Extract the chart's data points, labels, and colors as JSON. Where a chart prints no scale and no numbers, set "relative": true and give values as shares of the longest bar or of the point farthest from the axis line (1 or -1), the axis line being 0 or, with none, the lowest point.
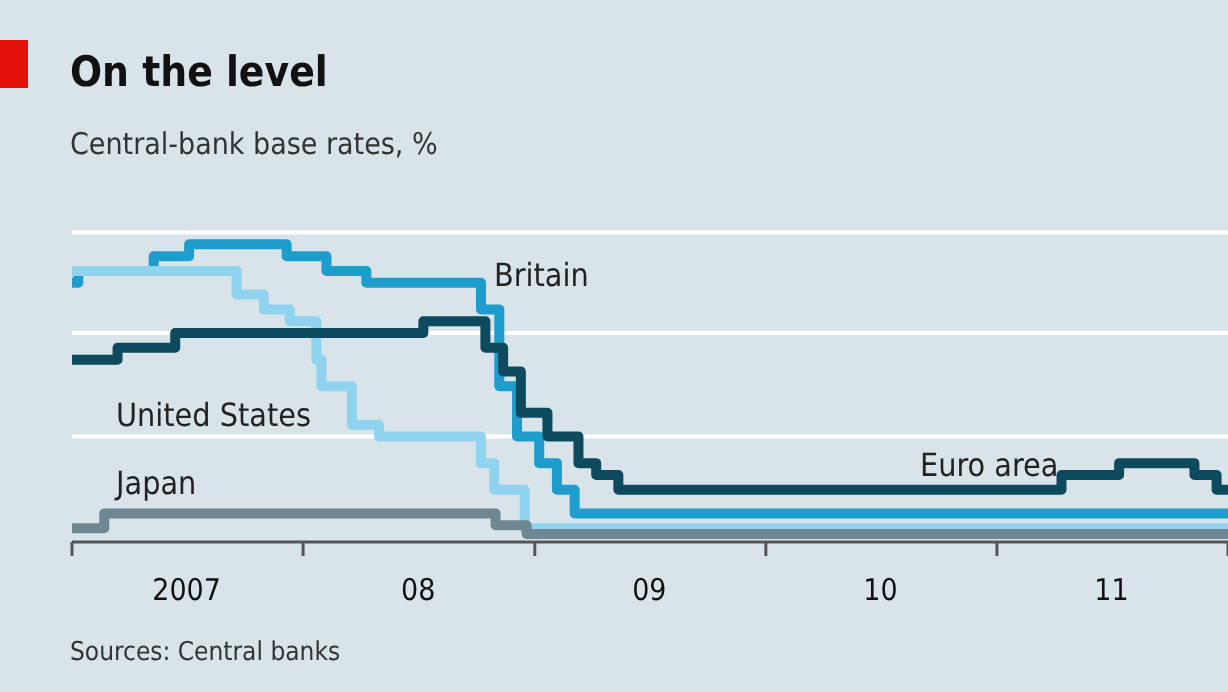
{
  "chart_data": {
    "type": "step",
    "title": "On the level",
    "subtitle": "Central-bank base rates, %",
    "annotations": [
      "Sources: Central banks"
    ],
    "relative": true,
    "ref_lines": [
      {
        "axis": "y",
        "value": 0.35,
        "color": "#ffffff"
      },
      {
        "axis": "y",
        "value": 0.7,
        "color": "#ffffff"
      },
      {
        "axis": "y",
        "value": 1.04,
        "color": "#ffffff"
      }
    ],
    "xlim": [
      "2007-01-01",
      "2012-01-01"
    ],
    "xticks": [
      {
        "value": "2007-01-01",
        "label": null
      },
      {
        "value": "2007-07-01",
        "label": "2007"
      },
      {
        "value": "2008-01-01",
        "label": null
      },
      {
        "value": "2008-07-01",
        "label": "08"
      },
      {
        "value": "2009-01-01",
        "label": null
      },
      {
        "value": "2009-07-01",
        "label": "09"
      },
      {
        "value": "2010-01-01",
        "label": null
      },
      {
        "value": "2010-07-01",
        "label": "10"
      },
      {
        "value": "2011-01-01",
        "label": null
      },
      {
        "value": "2011-07-01",
        "label": "11"
      },
      {
        "value": "2012-01-01",
        "label": null
      }
    ],
    "series": [
      {
        "name": "Britain",
        "color": "#1e9ccc",
        "x": [
          "2007-01-01",
          "2007-01-11",
          "2007-05-10",
          "2007-07-05",
          "2007-12-06",
          "2008-02-07",
          "2008-04-10",
          "2008-10-08",
          "2008-11-06",
          "2008-12-04",
          "2009-01-08",
          "2009-02-05",
          "2009-03-05",
          "2012-01-01"
        ],
        "values": [
          0.87,
          0.91,
          0.96,
          1,
          0.96,
          0.91,
          0.87,
          0.78,
          0.52,
          0.35,
          0.26,
          0.17,
          0.09,
          0.09
        ]
      },
      {
        "name": "United States",
        "color": "#8fd3ee",
        "x": [
          "2007-01-01",
          "2007-09-18",
          "2007-10-31",
          "2007-12-11",
          "2008-01-22",
          "2008-01-30",
          "2008-03-18",
          "2008-04-30",
          "2008-10-08",
          "2008-10-29",
          "2008-12-16",
          "2012-01-01"
        ],
        "values": [
          0.91,
          0.83,
          0.78,
          0.74,
          0.61,
          0.52,
          0.39,
          0.35,
          0.26,
          0.17,
          0.04,
          0.04
        ]
      },
      {
        "name": "Euro area",
        "color": "#0d4a5e",
        "x": [
          "2007-01-01",
          "2007-03-14",
          "2007-06-13",
          "2008-07-09",
          "2008-10-15",
          "2008-11-12",
          "2008-12-10",
          "2009-01-21",
          "2009-03-11",
          "2009-04-08",
          "2009-05-13",
          "2011-04-13",
          "2011-07-13",
          "2011-11-09",
          "2011-12-14",
          "2012-01-01"
        ],
        "values": [
          0.61,
          0.65,
          0.7,
          0.74,
          0.65,
          0.57,
          0.43,
          0.35,
          0.26,
          0.22,
          0.17,
          0.22,
          0.26,
          0.22,
          0.17,
          0.17
        ]
      },
      {
        "name": "Japan",
        "color": "#6e8793",
        "x": [
          "2007-01-01",
          "2007-02-21",
          "2008-10-31",
          "2008-12-19",
          "2012-01-01"
        ],
        "values": [
          0.04,
          0.09,
          0.05,
          0.02,
          0.02
        ]
      }
    ]
  }
}
